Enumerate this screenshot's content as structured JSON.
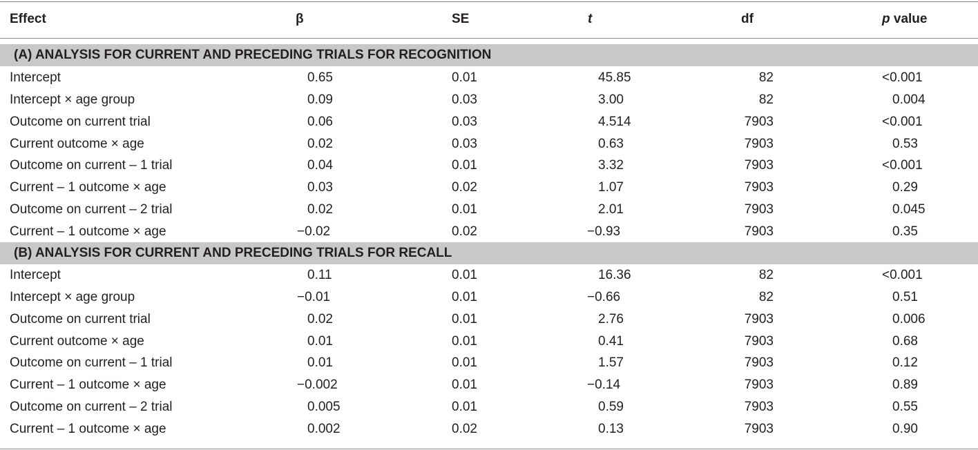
{
  "header": {
    "effect": "Effect",
    "beta": "β",
    "se": "SE",
    "t": "t",
    "df": "df",
    "p_italic": "p",
    "p_rest": " value"
  },
  "section_a": {
    "title": "(A) ANALYSIS FOR CURRENT AND PRECEDING TRIALS FOR RECOGNITION"
  },
  "section_b": {
    "title": "(B) ANALYSIS FOR CURRENT AND PRECEDING TRIALS FOR RECALL"
  },
  "rows_a": [
    {
      "effect": "Intercept",
      "beta": "0.65",
      "se": "0.01",
      "t": "45.85",
      "df": "82",
      "p": "<0.001"
    },
    {
      "effect": "Intercept × age group",
      "beta": "0.09",
      "se": "0.03",
      "t": "3.00",
      "df": "82",
      "p": "0.004"
    },
    {
      "effect": "Outcome on current trial",
      "beta": "0.06",
      "se": "0.03",
      "t": "4.514",
      "df": "7903",
      "p": "<0.001"
    },
    {
      "effect": "Current outcome × age",
      "beta": "0.02",
      "se": "0.03",
      "t": "0.63",
      "df": "7903",
      "p": "0.53"
    },
    {
      "effect": "Outcome on current – 1 trial",
      "beta": "0.04",
      "se": "0.01",
      "t": "3.32",
      "df": "7903",
      "p": "<0.001"
    },
    {
      "effect": "Current – 1 outcome × age",
      "beta": "0.03",
      "se": "0.02",
      "t": "1.07",
      "df": "7903",
      "p": "0.29"
    },
    {
      "effect": "Outcome on current – 2 trial",
      "beta": "0.02",
      "se": "0.01",
      "t": "2.01",
      "df": "7903",
      "p": "0.045"
    },
    {
      "effect": "Current – 1 outcome × age",
      "beta": "−0.02",
      "se": "0.02",
      "t": "−0.93",
      "df": "7903",
      "p": "0.35"
    }
  ],
  "rows_b": [
    {
      "effect": "Intercept",
      "beta": "0.11",
      "se": "0.01",
      "t": "16.36",
      "df": "82",
      "p": "<0.001"
    },
    {
      "effect": "Intercept × age group",
      "beta": "−0.01",
      "se": "0.01",
      "t": "−0.66",
      "df": "82",
      "p": "0.51"
    },
    {
      "effect": "Outcome on current trial",
      "beta": "0.02",
      "se": "0.01",
      "t": "2.76",
      "df": "7903",
      "p": "0.006"
    },
    {
      "effect": "Current outcome × age",
      "beta": "0.01",
      "se": "0.01",
      "t": "0.41",
      "df": "7903",
      "p": "0.68"
    },
    {
      "effect": "Outcome on current – 1 trial",
      "beta": "0.01",
      "se": "0.01",
      "t": "1.57",
      "df": "7903",
      "p": "0.12"
    },
    {
      "effect": "Current – 1 outcome × age",
      "beta": "−0.002",
      "se": "0.01",
      "t": "−0.14",
      "df": "7903",
      "p": "0.89"
    },
    {
      "effect": "Outcome on current – 2 trial",
      "beta": "0.005",
      "se": "0.01",
      "t": "0.59",
      "df": "7903",
      "p": "0.55"
    },
    {
      "effect": "Current – 1 outcome × age",
      "beta": "0.002",
      "se": "0.02",
      "t": "0.13",
      "df": "7903",
      "p": "0.90"
    }
  ]
}
